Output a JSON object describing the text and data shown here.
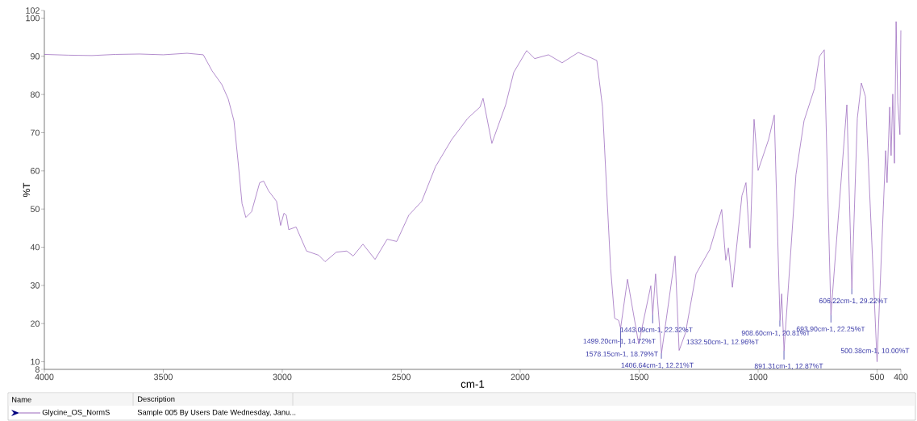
{
  "chart_data": {
    "type": "line",
    "xlabel": "cm-1",
    "ylabel": "%T",
    "xlim": [
      4000,
      400
    ],
    "ylim": [
      8,
      102
    ],
    "xticks": [
      4000,
      3500,
      3000,
      2500,
      2000,
      1500,
      1000,
      500,
      400
    ],
    "yticks": [
      8,
      10,
      20,
      30,
      40,
      50,
      60,
      70,
      80,
      90,
      100,
      102
    ],
    "legend": "bottom",
    "series": [
      {
        "name": "Glycine_OS_NormS",
        "color": "#a070c0",
        "x": [
          4000,
          3900,
          3800,
          3700,
          3600,
          3500,
          3400,
          3332,
          3295,
          3254,
          3227,
          3203,
          3186,
          3169,
          3153,
          3129,
          3095,
          3078,
          3058,
          3024,
          3007,
          2993,
          2983,
          2973,
          2942,
          2898,
          2847,
          2820,
          2773,
          2729,
          2702,
          2661,
          2610,
          2559,
          2519,
          2468,
          2414,
          2356,
          2288,
          2220,
          2169,
          2156,
          2119,
          2061,
          2027,
          1973,
          1939,
          1881,
          1824,
          1756,
          1702,
          1678,
          1654,
          1620,
          1603,
          1586,
          1578,
          1549,
          1502,
          1451,
          1443,
          1431,
          1406,
          1349,
          1332,
          1305,
          1261,
          1203,
          1153,
          1136,
          1125,
          1108,
          1068,
          1051,
          1034,
          1017,
          1000,
          956,
          932,
          908,
          901,
          891,
          841,
          807,
          763,
          742,
          722,
          694,
          627,
          606,
          583,
          566,
          549,
          500,
          464,
          458,
          447,
          441,
          434,
          427,
          420,
          413,
          404,
          400
        ],
        "values": [
          90.5,
          90.3,
          90.2,
          90.5,
          90.6,
          90.4,
          90.8,
          90.4,
          86.2,
          82.6,
          78.8,
          73.1,
          62.6,
          51.4,
          47.8,
          49.3,
          56.9,
          57.3,
          54.8,
          52.0,
          45.7,
          48.9,
          48.4,
          44.6,
          45.3,
          39.0,
          37.9,
          36.2,
          38.7,
          39.0,
          37.7,
          40.8,
          36.8,
          42.1,
          41.5,
          48.4,
          52.0,
          61.1,
          68.2,
          73.8,
          76.7,
          79.0,
          67.2,
          77.3,
          85.8,
          91.5,
          89.4,
          90.4,
          88.3,
          91.0,
          89.6,
          88.9,
          76.7,
          34.5,
          21.4,
          20.8,
          18.79,
          31.6,
          14.7,
          29.9,
          22.32,
          33.0,
          12.21,
          37.7,
          12.96,
          17.6,
          33.0,
          39.4,
          49.9,
          36.6,
          39.8,
          29.5,
          53.5,
          56.9,
          39.8,
          73.5,
          60.1,
          68.2,
          74.6,
          20.81,
          27.8,
          12.87,
          59.0,
          73.1,
          81.6,
          90.0,
          91.7,
          22.25,
          77.3,
          29.22,
          73.8,
          83.0,
          79.5,
          10.0,
          65.3,
          56.9,
          76.7,
          64.0,
          80.1,
          62.0,
          99.1,
          78.0,
          69.5,
          96.8
        ]
      }
    ],
    "annotations": [
      {
        "text": "1578.15cm-1, 18.79%T",
        "x": 1578.15,
        "y": 18.79
      },
      {
        "text": "1499.20cm-1, 14.72%T",
        "x": 1499.2,
        "y": 14.7
      },
      {
        "text": "1443.09cm-1, 22.32%T",
        "x": 1443.09,
        "y": 22.32
      },
      {
        "text": "1406.64cm-1, 12.21%T",
        "x": 1406.64,
        "y": 12.21
      },
      {
        "text": "1332.50cm-1, 12.96%T",
        "x": 1332.5,
        "y": 12.96
      },
      {
        "text": "908.60cm-1, 20.81%T",
        "x": 908.6,
        "y": 20.81
      },
      {
        "text": "891.31cm-1, 12.87%T",
        "x": 891.31,
        "y": 12.87
      },
      {
        "text": "693.90cm-1, 22.25%T",
        "x": 693.9,
        "y": 22.25
      },
      {
        "text": "606.22cm-1, 29.22%T",
        "x": 606.22,
        "y": 29.22
      },
      {
        "text": "500.38cm-1, 10.00%T",
        "x": 500.38,
        "y": 10.0
      },
      "Name",
      "Description",
      "Sample 005 By Users Date Wednesday, Janu..."
    ]
  }
}
